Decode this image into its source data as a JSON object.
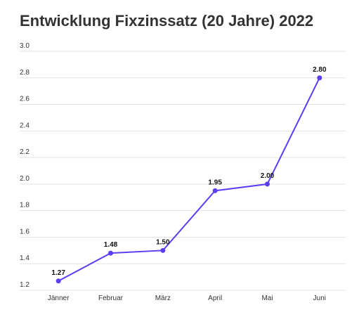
{
  "chart_data": {
    "type": "line",
    "title": "Entwicklung Fixzinssatz (20 Jahre) 2022",
    "categories": [
      "Jänner",
      "Februar",
      "März",
      "April",
      "Mai",
      "Juni"
    ],
    "series": [
      {
        "color": "#5a3ef0",
        "values": [
          1.27,
          1.48,
          1.5,
          1.95,
          2.0,
          2.8
        ],
        "value_labels": [
          "1.27",
          "1.48",
          "1.50",
          "1.95",
          "2.00",
          "2.80"
        ]
      }
    ],
    "ylim": [
      1.2,
      3.0
    ],
    "yticks": [
      1.2,
      1.4,
      1.6,
      1.8,
      {
        "value": 2,
        "label": "2.0"
      },
      2.2,
      2.4,
      2.6,
      2.8,
      {
        "value": 3,
        "label": "3.0"
      }
    ],
    "grid": true
  }
}
